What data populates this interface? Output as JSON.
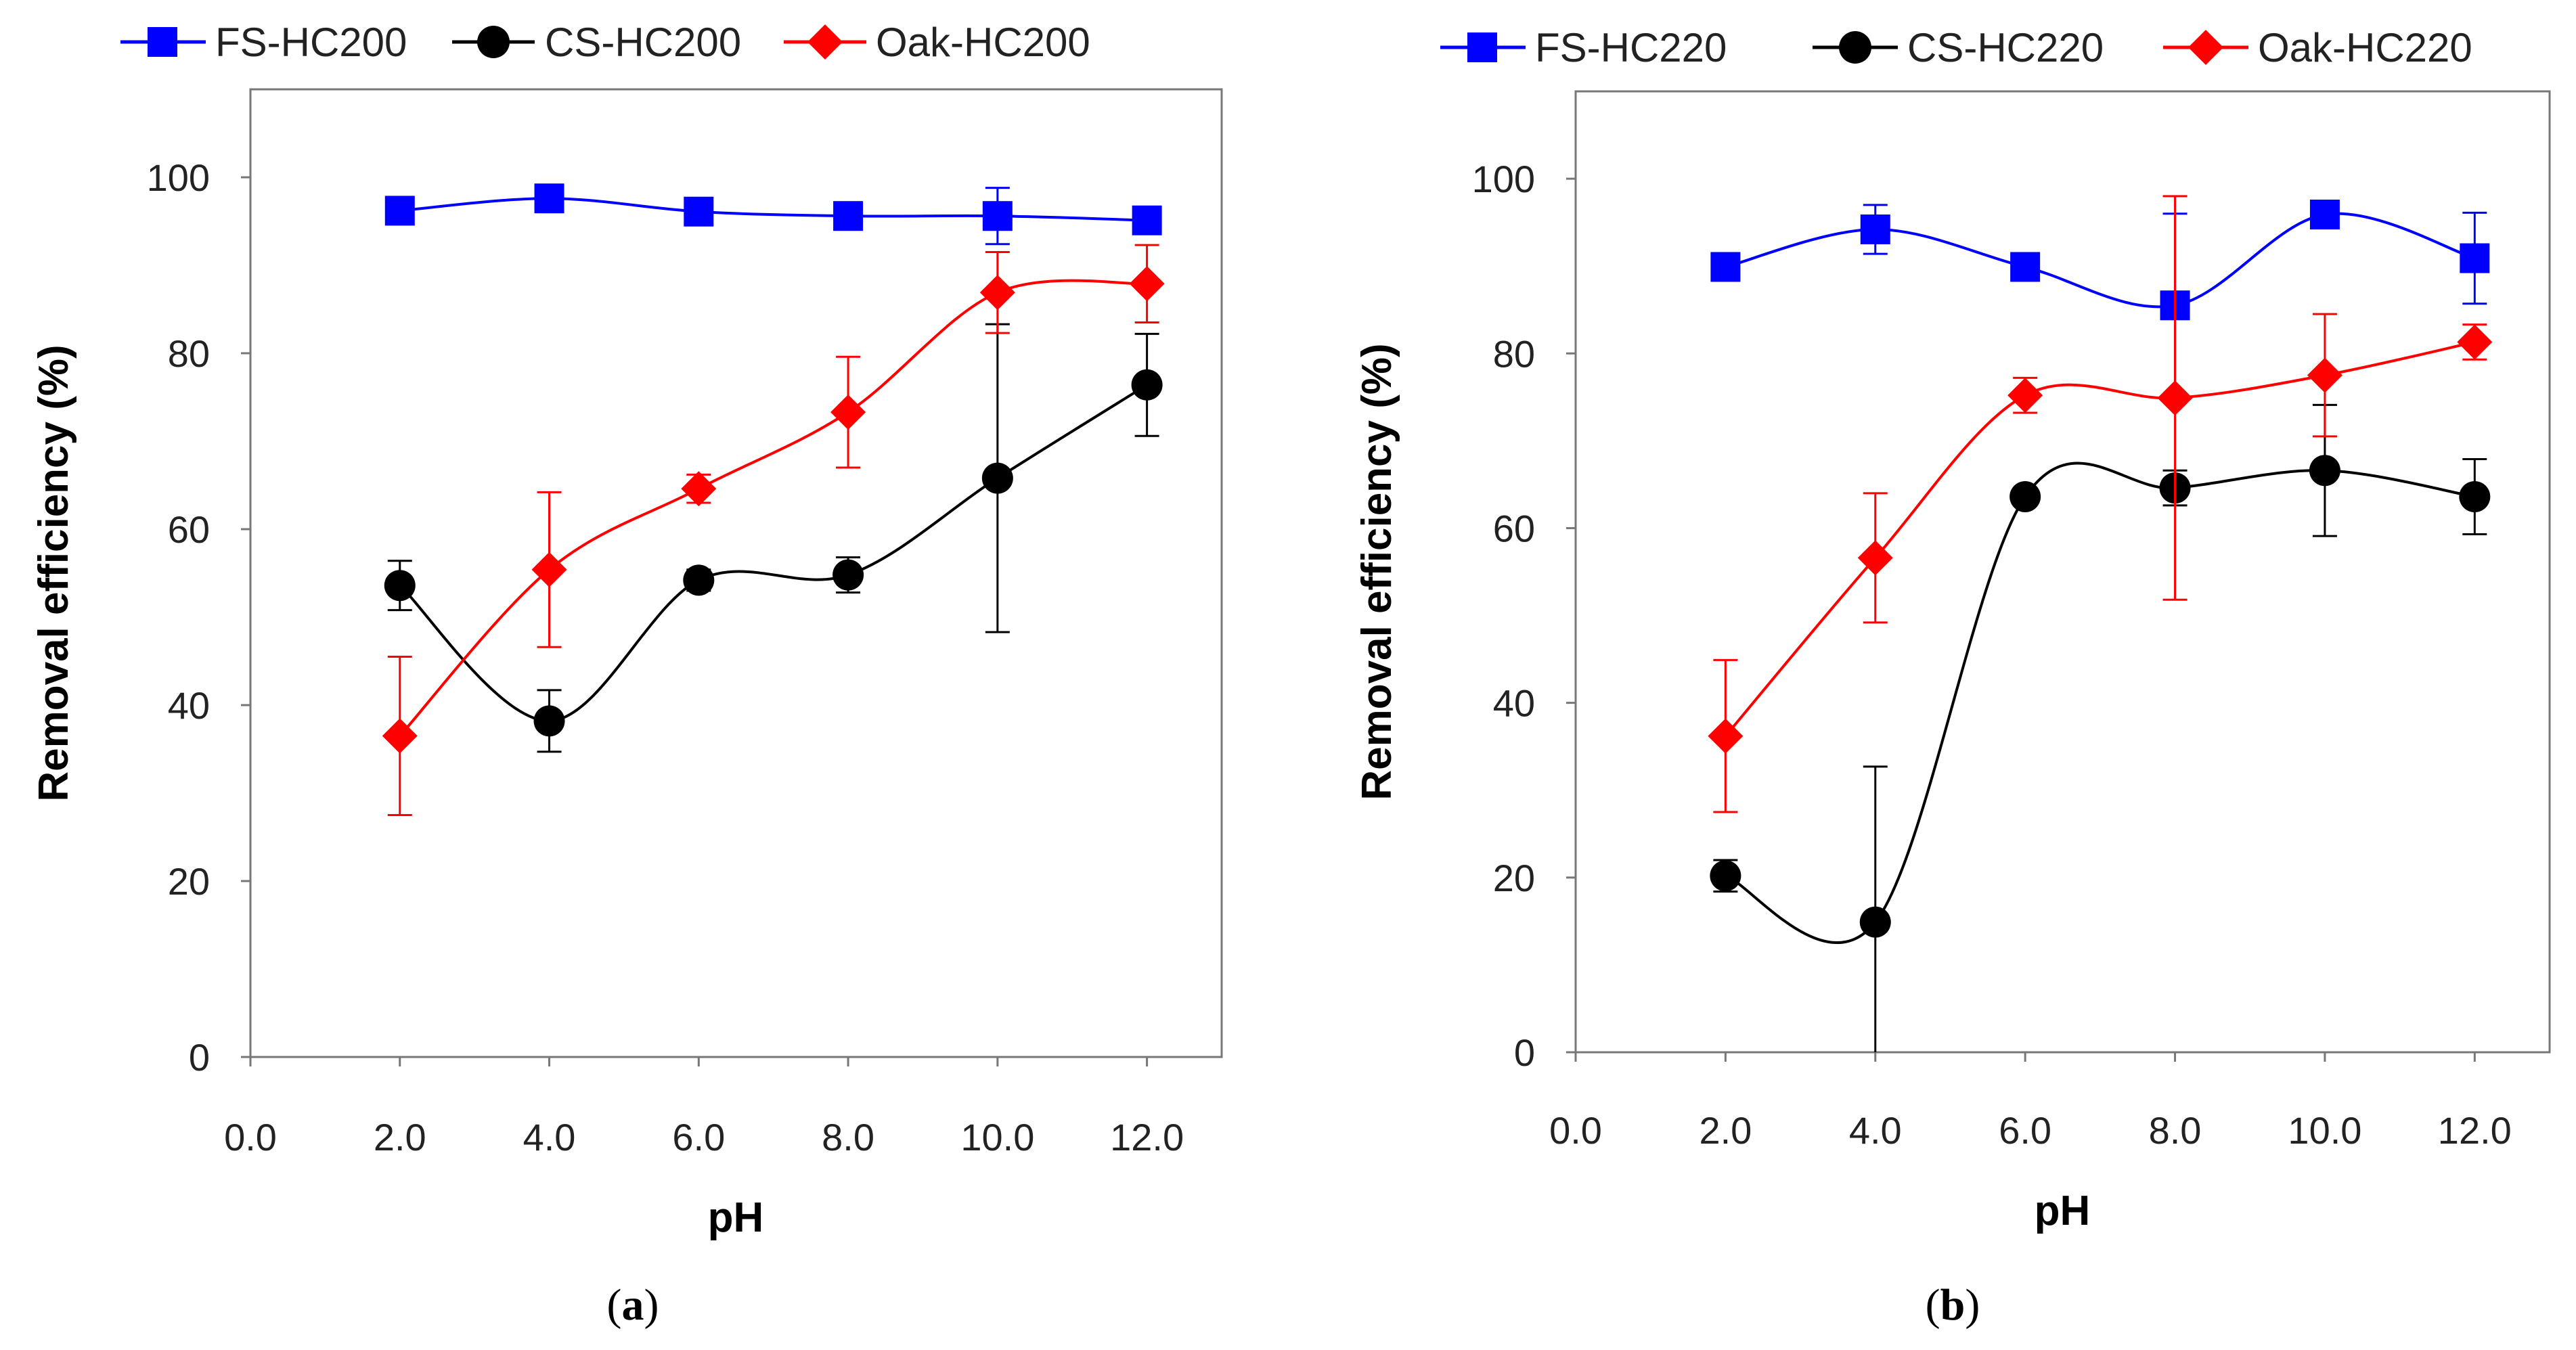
{
  "chart_data": [
    {
      "type": "line",
      "panel_label": "a",
      "xlabel": "pH",
      "ylabel": "Removal efficiency (%)",
      "xlim": [
        0,
        13
      ],
      "ylim": [
        0,
        110
      ],
      "xticks": [
        "0.0",
        "2.0",
        "4.0",
        "6.0",
        "8.0",
        "10.0",
        "12.0"
      ],
      "yticks": [
        "0",
        "20",
        "40",
        "60",
        "80",
        "100"
      ],
      "x": [
        2,
        4,
        6,
        8,
        10,
        12
      ],
      "legend_position": "top",
      "series": [
        {
          "name": "FS-HC200",
          "color": "#0000ff",
          "marker": "square",
          "values": [
            96.2,
            97.6,
            96.1,
            95.6,
            95.6,
            95.1
          ],
          "errors": [
            0.6,
            0.5,
            0.6,
            0.7,
            3.2,
            1.0
          ]
        },
        {
          "name": "CS-HC200",
          "color": "#000000",
          "marker": "circle",
          "values": [
            53.6,
            38.2,
            54.2,
            54.8,
            65.8,
            76.4
          ],
          "errors": [
            2.8,
            3.5,
            1.2,
            2.0,
            17.5,
            5.8
          ]
        },
        {
          "name": "Oak-HC200",
          "color": "#ff0000",
          "marker": "diamond",
          "values": [
            36.5,
            55.4,
            64.6,
            73.3,
            86.9,
            87.9
          ],
          "errors": [
            9.0,
            8.8,
            1.6,
            6.3,
            4.6,
            4.4
          ]
        }
      ]
    },
    {
      "type": "line",
      "panel_label": "b",
      "xlabel": "pH",
      "ylabel": "Removal efficiency (%)",
      "xlim": [
        0,
        13
      ],
      "ylim": [
        0,
        110
      ],
      "xticks": [
        "0.0",
        "2.0",
        "4.0",
        "6.0",
        "8.0",
        "10.0",
        "12.0"
      ],
      "yticks": [
        "0",
        "20",
        "40",
        "60",
        "80",
        "100"
      ],
      "x": [
        2,
        4,
        6,
        8,
        10,
        12
      ],
      "legend_position": "top",
      "series": [
        {
          "name": "FS-HC220",
          "color": "#0000ff",
          "marker": "square",
          "values": [
            89.9,
            94.2,
            89.9,
            85.5,
            95.9,
            90.9
          ],
          "errors": [
            0.6,
            2.8,
            0.6,
            10.5,
            0.6,
            5.2
          ]
        },
        {
          "name": "CS-HC220",
          "color": "#000000",
          "marker": "circle",
          "values": [
            20.2,
            14.9,
            63.6,
            64.6,
            66.6,
            63.6
          ],
          "errors": [
            1.8,
            17.8,
            1.0,
            2.0,
            7.5,
            4.3
          ]
        },
        {
          "name": "Oak-HC220",
          "color": "#ff0000",
          "marker": "diamond",
          "values": [
            36.2,
            56.6,
            75.2,
            74.9,
            77.5,
            81.3
          ],
          "errors": [
            8.7,
            7.4,
            2.0,
            23.1,
            7.0,
            2.0
          ]
        }
      ]
    }
  ]
}
